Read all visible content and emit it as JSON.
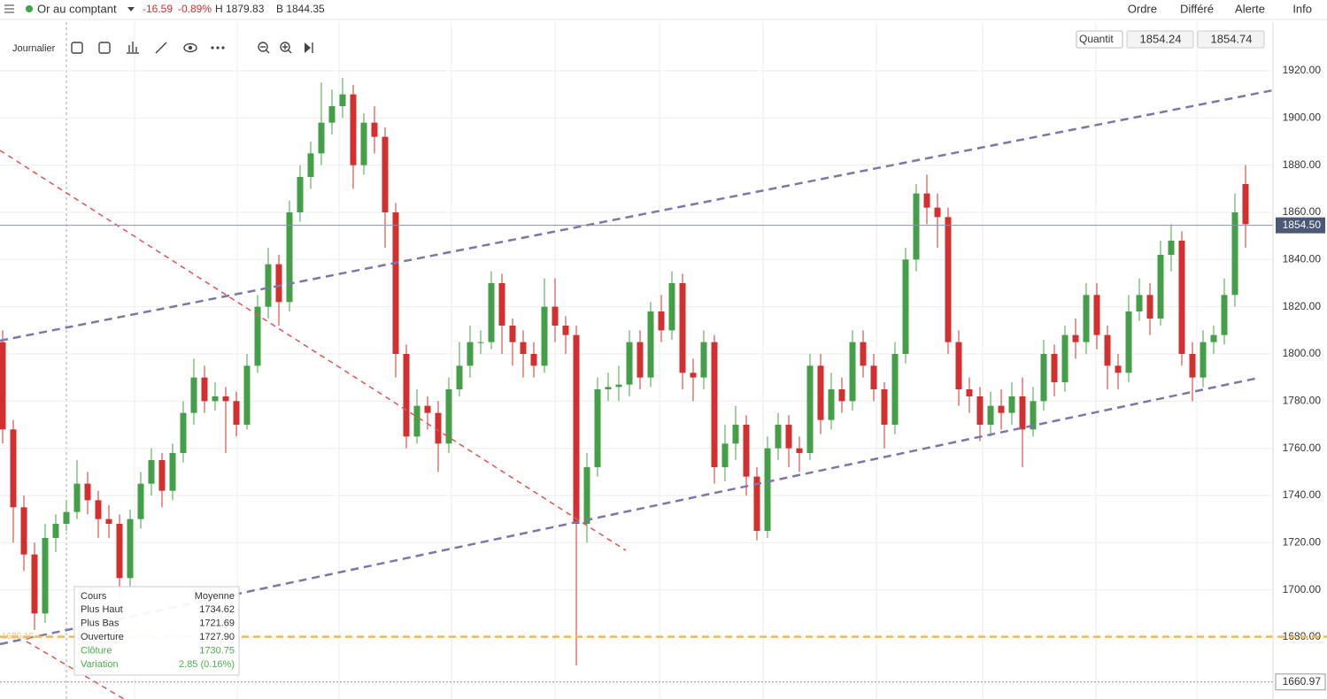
{
  "header": {
    "instrument": "Or au comptant",
    "change": "-16.59",
    "change_pct": "-0.89%",
    "high": "H 1879.83",
    "low": "B 1844.35",
    "menu": [
      "Ordre",
      "Différé",
      "Alerte",
      "Info"
    ]
  },
  "toolbar": {
    "interval": "Journalier",
    "quantity": "Quantit",
    "bid": "1854.24",
    "ask": "1854.74"
  },
  "tooltip": {
    "header": [
      "Cours",
      "Moyenne"
    ],
    "rows": [
      [
        "Plus Haut",
        "1734.62"
      ],
      [
        "Plus Bas",
        "1721.69"
      ],
      [
        "Ouverture",
        "1727.90"
      ],
      [
        "Clôture",
        "1730.75"
      ],
      [
        "Variation",
        "2.85 (0.16%)"
      ]
    ]
  },
  "chart_data": {
    "type": "candlestick",
    "open": [
      1805,
      1768,
      1735,
      1715,
      1690,
      1722,
      1728,
      1733,
      1745,
      1738,
      1730,
      1728,
      1705,
      1730,
      1745,
      1755,
      1742,
      1758,
      1775,
      1790,
      1780,
      1782,
      1780,
      1770,
      1795,
      1820,
      1838,
      1822,
      1860,
      1875,
      1885,
      1898,
      1905,
      1910,
      1880,
      1898,
      1892,
      1860,
      1800,
      1765,
      1778,
      1775,
      1762,
      1785,
      1795,
      1805,
      1805,
      1830,
      1812,
      1805,
      1800,
      1795,
      1820,
      1812,
      1808,
      1728,
      1752,
      1785,
      1786,
      1787,
      1805,
      1790,
      1818,
      1810,
      1830,
      1792,
      1790,
      1805,
      1752,
      1762,
      1770,
      1748,
      1725,
      1760,
      1770,
      1760,
      1758,
      1795,
      1772,
      1785,
      1780,
      1805,
      1795,
      1785,
      1770,
      1800,
      1840,
      1868,
      1862,
      1858,
      1805,
      1785,
      1782,
      1770,
      1778,
      1775,
      1782,
      1768,
      1780,
      1800,
      1788,
      1808,
      1805,
      1825,
      1808,
      1795,
      1792,
      1818,
      1825,
      1815,
      1842,
      1848,
      1800,
      1790,
      1805,
      1808,
      1825,
      1872
    ],
    "high": [
      1810,
      1772,
      1740,
      1720,
      1728,
      1732,
      1738,
      1755,
      1750,
      1742,
      1736,
      1732,
      1734,
      1750,
      1760,
      1758,
      1762,
      1780,
      1798,
      1795,
      1788,
      1786,
      1784,
      1800,
      1825,
      1845,
      1842,
      1865,
      1880,
      1890,
      1915,
      1912,
      1917,
      1914,
      1902,
      1905,
      1896,
      1864,
      1804,
      1785,
      1782,
      1780,
      1790,
      1805,
      1812,
      1810,
      1835,
      1834,
      1815,
      1810,
      1805,
      1832,
      1832,
      1816,
      1812,
      1758,
      1790,
      1792,
      1795,
      1810,
      1810,
      1822,
      1825,
      1835,
      1834,
      1798,
      1810,
      1808,
      1770,
      1778,
      1774,
      1752,
      1765,
      1775,
      1774,
      1765,
      1800,
      1800,
      1792,
      1790,
      1810,
      1810,
      1800,
      1788,
      1805,
      1845,
      1872,
      1876,
      1868,
      1862,
      1810,
      1790,
      1786,
      1784,
      1785,
      1788,
      1790,
      1786,
      1806,
      1804,
      1812,
      1815,
      1830,
      1830,
      1812,
      1800,
      1825,
      1832,
      1830,
      1848,
      1855,
      1852,
      1805,
      1810,
      1812,
      1832,
      1868,
      1880
    ],
    "low": [
      1762,
      1720,
      1708,
      1683,
      1686,
      1716,
      1725,
      1730,
      1732,
      1722,
      1722,
      1695,
      1700,
      1726,
      1740,
      1735,
      1738,
      1754,
      1770,
      1775,
      1776,
      1758,
      1765,
      1768,
      1792,
      1815,
      1812,
      1818,
      1856,
      1870,
      1880,
      1893,
      1900,
      1870,
      1876,
      1885,
      1845,
      1790,
      1760,
      1762,
      1768,
      1750,
      1758,
      1782,
      1790,
      1800,
      1802,
      1800,
      1795,
      1790,
      1790,
      1792,
      1805,
      1800,
      1668,
      1720,
      1748,
      1780,
      1780,
      1782,
      1785,
      1786,
      1805,
      1806,
      1785,
      1780,
      1785,
      1745,
      1746,
      1755,
      1740,
      1721,
      1722,
      1755,
      1752,
      1750,
      1755,
      1766,
      1768,
      1775,
      1776,
      1790,
      1780,
      1760,
      1766,
      1796,
      1835,
      1855,
      1845,
      1800,
      1778,
      1775,
      1763,
      1765,
      1768,
      1770,
      1752,
      1765,
      1776,
      1782,
      1784,
      1798,
      1800,
      1802,
      1785,
      1785,
      1788,
      1814,
      1808,
      1812,
      1835,
      1795,
      1780,
      1786,
      1800,
      1804,
      1820,
      1845
    ],
    "close": [
      1768,
      1735,
      1715,
      1690,
      1722,
      1728,
      1733,
      1745,
      1738,
      1730,
      1728,
      1705,
      1730,
      1745,
      1755,
      1742,
      1758,
      1775,
      1790,
      1780,
      1782,
      1780,
      1770,
      1795,
      1820,
      1838,
      1822,
      1860,
      1875,
      1885,
      1898,
      1905,
      1910,
      1880,
      1898,
      1892,
      1860,
      1800,
      1765,
      1778,
      1775,
      1762,
      1785,
      1795,
      1805,
      1805,
      1830,
      1812,
      1805,
      1800,
      1795,
      1820,
      1812,
      1808,
      1728,
      1752,
      1785,
      1786,
      1787,
      1805,
      1790,
      1818,
      1810,
      1830,
      1792,
      1790,
      1805,
      1752,
      1762,
      1770,
      1748,
      1725,
      1760,
      1770,
      1760,
      1758,
      1795,
      1772,
      1785,
      1780,
      1805,
      1795,
      1785,
      1770,
      1800,
      1840,
      1868,
      1862,
      1858,
      1805,
      1785,
      1782,
      1770,
      1778,
      1775,
      1782,
      1768,
      1780,
      1800,
      1788,
      1808,
      1805,
      1825,
      1808,
      1795,
      1792,
      1818,
      1825,
      1815,
      1842,
      1848,
      1800,
      1790,
      1805,
      1808,
      1825,
      1860,
      1855
    ],
    "up_color": "#43a047",
    "down_color": "#d32f2f",
    "ylim": [
      1653.75,
      1939.5
    ],
    "yticks": [
      {
        "value": 1680,
        "label": "1680.00"
      },
      {
        "value": 1700,
        "label": "1700.00"
      },
      {
        "value": 1720,
        "label": "1720.00"
      },
      {
        "value": 1740,
        "label": "1740.00"
      },
      {
        "value": 1760,
        "label": "1760.00"
      },
      {
        "value": 1780,
        "label": "1780.00"
      },
      {
        "value": 1800,
        "label": "1800.00"
      },
      {
        "value": 1820,
        "label": "1820.00"
      },
      {
        "value": 1840,
        "label": "1840.00"
      },
      {
        "value": 1860,
        "label": "1860.00"
      },
      {
        "value": 1880,
        "label": "1880.00"
      },
      {
        "value": 1900,
        "label": "1900.00"
      },
      {
        "value": 1920,
        "label": "1920.00"
      }
    ],
    "grid": true,
    "last_price": {
      "value": 1854.5,
      "label": "1854.50"
    },
    "alert_line": {
      "value": 1680.15,
      "label": "1680.15"
    },
    "range_low": {
      "value": 1660.97,
      "label": "1660.97"
    }
  }
}
